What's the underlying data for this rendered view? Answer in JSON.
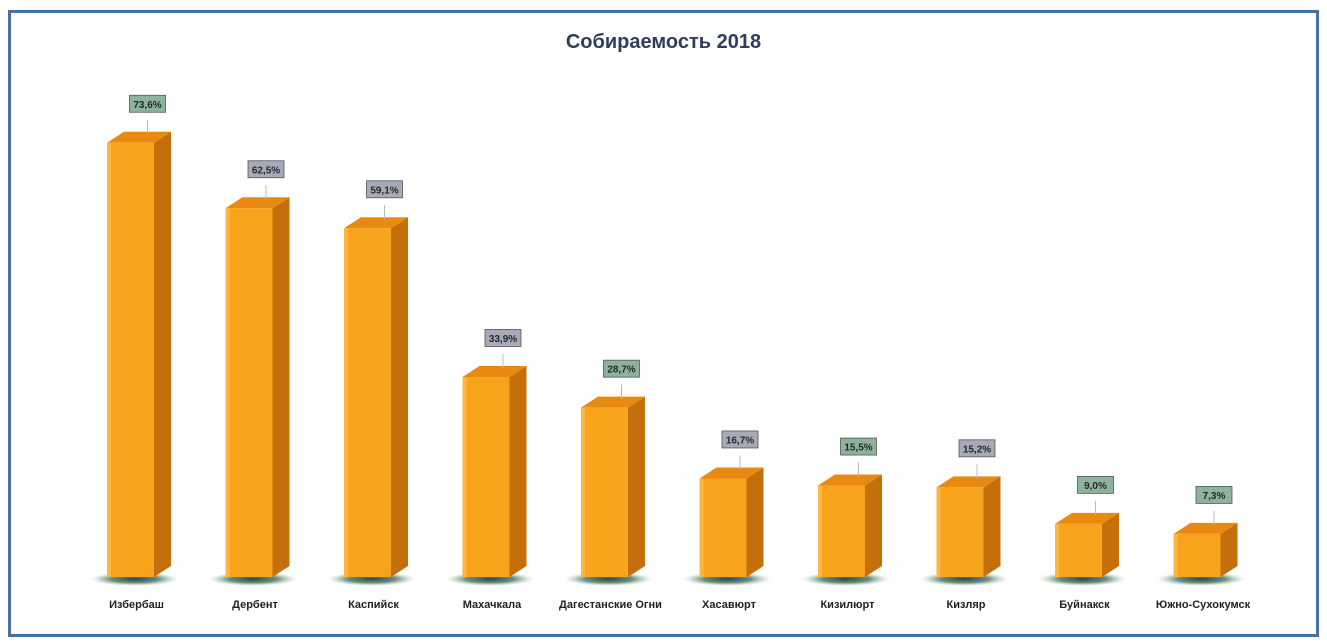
{
  "chart_data": {
    "type": "bar",
    "title": "Собираемость 2018",
    "xlabel": "",
    "ylabel": "",
    "ylim": [
      0,
      80
    ],
    "grid": false,
    "legend": false,
    "categories": [
      "Избербаш",
      "Дербент",
      "Каспийск",
      "Махачкала",
      "Дагестанские Огни",
      "Хасавюрт",
      "Кизилюрт",
      "Кизляр",
      "Буйнакск",
      "Южно-Сухокумск"
    ],
    "values": [
      73.6,
      62.5,
      59.1,
      33.9,
      28.7,
      16.7,
      15.5,
      15.2,
      9.0,
      7.3
    ],
    "data_labels": [
      "73,6%",
      "62,5%",
      "59,1%",
      "33,9%",
      "28,7%",
      "16,7%",
      "15,5%",
      "15,2%",
      "9,0%",
      "7,3%"
    ],
    "colors": {
      "bar_front": "#f7a31c",
      "bar_side": "#c46f0b",
      "bar_top": "#e88a12",
      "label_green": "#8fb39a",
      "label_gray": "#a9a9b9"
    },
    "label_colors": [
      "green",
      "gray",
      "gray",
      "gray",
      "green",
      "gray",
      "green",
      "gray",
      "green",
      "green"
    ]
  }
}
